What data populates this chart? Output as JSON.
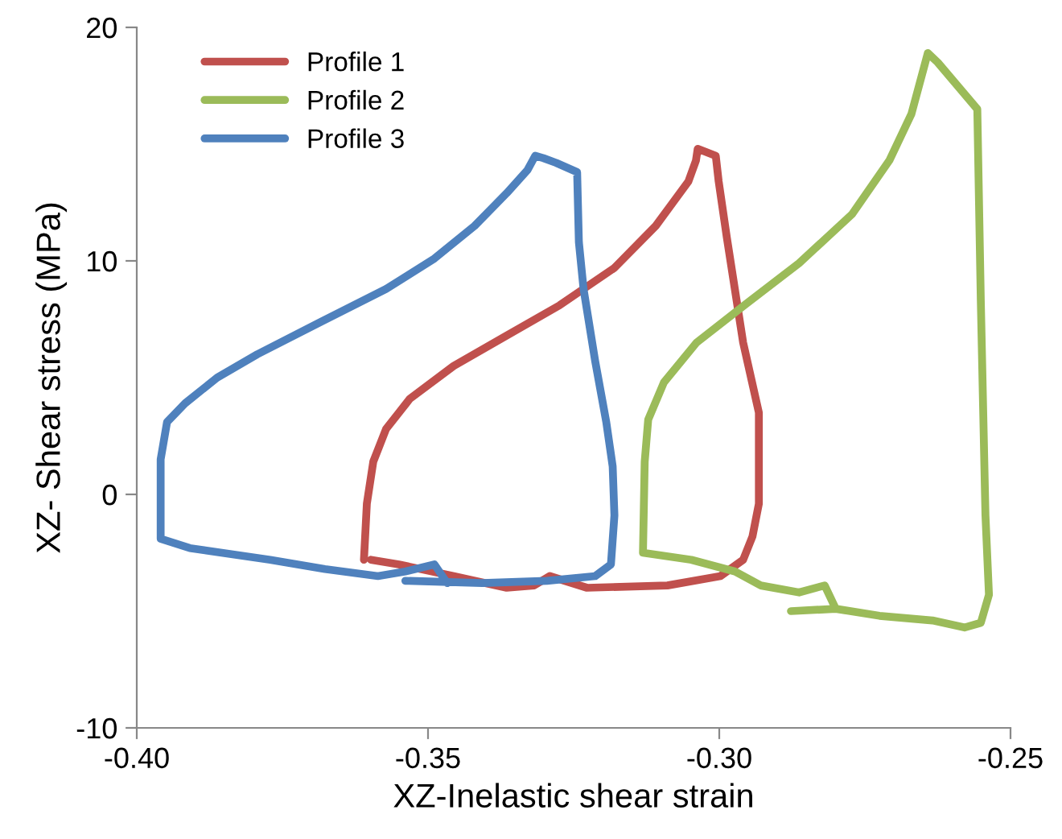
{
  "chart_data": {
    "type": "line",
    "xlabel": "XZ-Inelastic shear strain",
    "ylabel": "XZ- Shear stress (MPa)",
    "xlim": [
      -0.4,
      -0.25
    ],
    "xticks": [
      {
        "value": -0.4,
        "label": "-0.40"
      },
      {
        "value": -0.35,
        "label": "-0.35"
      },
      {
        "value": -0.3,
        "label": "-0.30"
      },
      {
        "value": -0.25,
        "label": "-0.25"
      }
    ],
    "ylim": [
      -10,
      20
    ],
    "yticks": [
      -10,
      0,
      10,
      20
    ],
    "grid": false,
    "legend": "top left",
    "marker": "none",
    "line_style": "solid",
    "series": [
      {
        "name": "Profile 1",
        "color": "#c0504d",
        "x": [
          -0.361,
          -0.3605,
          -0.3594,
          -0.3572,
          -0.3531,
          -0.3456,
          -0.3365,
          -0.3274,
          -0.318,
          -0.3109,
          -0.3053,
          -0.304,
          -0.3037,
          -0.3006,
          -0.3001,
          -0.2987,
          -0.2959,
          -0.2932,
          -0.2932,
          -0.2943,
          -0.2959,
          -0.2998,
          -0.3089,
          -0.3227,
          -0.3291,
          -0.3318,
          -0.3365,
          -0.3456,
          -0.355,
          -0.3598
        ],
        "values": [
          -2.8,
          -0.4,
          1.4,
          2.8,
          4.1,
          5.5,
          6.8,
          8.1,
          9.7,
          11.5,
          13.4,
          14.3,
          14.8,
          14.5,
          13.4,
          11.0,
          6.5,
          3.5,
          -0.4,
          -1.8,
          -2.8,
          -3.5,
          -3.9,
          -4.0,
          -3.5,
          -3.9,
          -4.0,
          -3.5,
          -3.0,
          -2.8
        ]
      },
      {
        "name": "Profile 2",
        "color": "#9bbb59",
        "x": [
          -0.2877,
          -0.28,
          -0.2725,
          -0.2634,
          -0.2579,
          -0.2551,
          -0.2537,
          -0.2543,
          -0.2551,
          -0.2557,
          -0.2625,
          -0.2642,
          -0.267,
          -0.2708,
          -0.2772,
          -0.2863,
          -0.2957,
          -0.3039,
          -0.3095,
          -0.3122,
          -0.3128,
          -0.3131,
          -0.3048,
          -0.2973,
          -0.2929,
          -0.2863,
          -0.2819,
          -0.28
        ],
        "values": [
          -5.0,
          -4.9,
          -5.2,
          -5.4,
          -5.7,
          -5.5,
          -4.3,
          -0.9,
          8.3,
          16.5,
          18.5,
          18.9,
          16.3,
          14.3,
          12.0,
          9.9,
          8.1,
          6.5,
          4.8,
          3.2,
          1.4,
          -2.5,
          -2.8,
          -3.3,
          -3.9,
          -4.2,
          -3.9,
          -4.9
        ]
      },
      {
        "name": "Profile 3",
        "color": "#4f81bd",
        "x": [
          -0.3539,
          -0.3407,
          -0.3296,
          -0.3213,
          -0.3186,
          -0.318,
          -0.3183,
          -0.3194,
          -0.3213,
          -0.3233,
          -0.3241,
          -0.3244,
          -0.328,
          -0.3302,
          -0.3316,
          -0.3329,
          -0.3365,
          -0.342,
          -0.3489,
          -0.3572,
          -0.3683,
          -0.3793,
          -0.3862,
          -0.3917,
          -0.3948,
          -0.3959,
          -0.3959,
          -0.3909,
          -0.3771,
          -0.3677,
          -0.3586,
          -0.3539,
          -0.3489,
          -0.3467
        ],
        "values": [
          -3.7,
          -3.8,
          -3.7,
          -3.5,
          -3.0,
          -0.9,
          1.2,
          3.1,
          5.7,
          8.8,
          10.8,
          13.8,
          14.2,
          14.4,
          14.5,
          13.9,
          12.9,
          11.5,
          10.1,
          8.8,
          7.4,
          6.0,
          5.0,
          3.9,
          3.1,
          1.5,
          -1.9,
          -2.3,
          -2.8,
          -3.2,
          -3.5,
          -3.3,
          -3.0,
          -3.8
        ]
      }
    ]
  }
}
